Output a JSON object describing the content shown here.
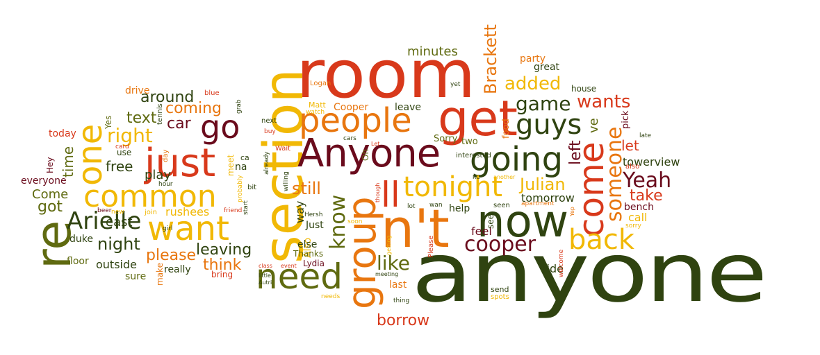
{
  "palette": {
    "red": "#d8391b",
    "orange": "#e8760f",
    "yellow": "#f1b805",
    "dark_green": "#2f4310",
    "olive": "#5f6a10",
    "maroon": "#6a0b1c"
  },
  "words": [
    {
      "text": "anyone",
      "color": "dark_green"
    },
    {
      "text": "room",
      "color": "red"
    },
    {
      "text": "section",
      "color": "yellow"
    },
    {
      "text": "Anyone",
      "color": "maroon"
    },
    {
      "text": "get",
      "color": "red"
    },
    {
      "text": "now",
      "color": "dark_green"
    },
    {
      "text": "n't",
      "color": "orange"
    },
    {
      "text": "group",
      "color": "orange"
    },
    {
      "text": "just",
      "color": "red"
    },
    {
      "text": "common",
      "color": "yellow"
    },
    {
      "text": "re",
      "color": "olive"
    },
    {
      "text": "one",
      "color": "yellow"
    },
    {
      "text": "people",
      "color": "orange"
    },
    {
      "text": "going",
      "color": "dark_green"
    },
    {
      "text": "want",
      "color": "yellow"
    },
    {
      "text": "need",
      "color": "olive"
    },
    {
      "text": "come",
      "color": "red"
    },
    {
      "text": "tonight",
      "color": "yellow"
    },
    {
      "text": "go",
      "color": "maroon"
    },
    {
      "text": "back",
      "color": "yellow"
    },
    {
      "text": "guys",
      "color": "dark_green"
    },
    {
      "text": "Arielle",
      "color": "dark_green"
    },
    {
      "text": "know",
      "color": "olive"
    },
    {
      "text": "someone",
      "color": "orange"
    },
    {
      "text": "ll",
      "color": "red"
    },
    {
      "text": "cooper",
      "color": "maroon"
    },
    {
      "text": "Yeah",
      "color": "maroon"
    },
    {
      "text": "game",
      "color": "dark_green"
    },
    {
      "text": "right",
      "color": "yellow"
    },
    {
      "text": "like",
      "color": "olive"
    },
    {
      "text": "night",
      "color": "dark_green"
    },
    {
      "text": "coming",
      "color": "orange"
    },
    {
      "text": "added",
      "color": "yellow"
    },
    {
      "text": "wants",
      "color": "red"
    },
    {
      "text": "Julian",
      "color": "yellow"
    },
    {
      "text": "Brackett",
      "color": "orange"
    },
    {
      "text": "around",
      "color": "dark_green"
    },
    {
      "text": "text",
      "color": "olive"
    },
    {
      "text": "still",
      "color": "orange"
    },
    {
      "text": "borrow",
      "color": "red"
    },
    {
      "text": "left",
      "color": "maroon"
    },
    {
      "text": "got",
      "color": "olive"
    },
    {
      "text": "please",
      "color": "orange"
    },
    {
      "text": "minutes",
      "color": "olive"
    },
    {
      "text": "car",
      "color": "maroon"
    },
    {
      "text": "take",
      "color": "red"
    },
    {
      "text": "leaving",
      "color": "dark_green"
    },
    {
      "text": "think",
      "color": "orange"
    },
    {
      "text": "free",
      "color": "dark_green"
    },
    {
      "text": "time",
      "color": "olive"
    },
    {
      "text": "Come",
      "color": "olive"
    },
    {
      "text": "east",
      "color": "dark_green"
    },
    {
      "text": "let",
      "color": "red"
    },
    {
      "text": "ve",
      "color": "olive"
    },
    {
      "text": "play",
      "color": "dark_green"
    },
    {
      "text": "way",
      "color": "dark_green"
    },
    {
      "text": "outside",
      "color": "dark_green"
    },
    {
      "text": "towerview",
      "color": "dark_green"
    },
    {
      "text": "tomorrow",
      "color": "dark_green"
    },
    {
      "text": "feel",
      "color": "maroon"
    },
    {
      "text": "ride",
      "color": "dark_green"
    },
    {
      "text": "call",
      "color": "yellow"
    },
    {
      "text": "rushees",
      "color": "yellow"
    },
    {
      "text": "floor",
      "color": "olive"
    },
    {
      "text": "sure",
      "color": "olive"
    },
    {
      "text": "really",
      "color": "dark_green"
    },
    {
      "text": "drive",
      "color": "orange"
    },
    {
      "text": "Also",
      "color": "yellow"
    },
    {
      "text": "duke",
      "color": "dark_green"
    },
    {
      "text": "bench",
      "color": "maroon"
    },
    {
      "text": "Just",
      "color": "dark_green"
    },
    {
      "text": "else",
      "color": "dark_green"
    },
    {
      "text": "help",
      "color": "dark_green"
    },
    {
      "text": "last",
      "color": "orange"
    },
    {
      "text": "party",
      "color": "orange"
    },
    {
      "text": "great",
      "color": "dark_green"
    },
    {
      "text": "Cooper",
      "color": "orange"
    },
    {
      "text": "leave",
      "color": "dark_green"
    },
    {
      "text": "food",
      "color": "orange"
    },
    {
      "text": "Sorry",
      "color": "olive"
    },
    {
      "text": "two",
      "color": "olive"
    },
    {
      "text": "pick",
      "color": "maroon"
    },
    {
      "text": "house",
      "color": "dark_green"
    },
    {
      "text": "everyone",
      "color": "maroon"
    },
    {
      "text": "today",
      "color": "red"
    },
    {
      "text": "use",
      "color": "dark_green"
    },
    {
      "text": "Hey",
      "color": "maroon"
    },
    {
      "text": "Yes",
      "color": "olive"
    },
    {
      "text": "na",
      "color": "dark_green"
    },
    {
      "text": "Thanks",
      "color": "olive"
    },
    {
      "text": "Lydia",
      "color": "maroon"
    },
    {
      "text": "bring",
      "color": "red"
    },
    {
      "text": "make",
      "color": "orange"
    },
    {
      "text": "see",
      "color": "dark_green"
    },
    {
      "text": "Matt",
      "color": "yellow"
    },
    {
      "text": "meet",
      "color": "yellow"
    },
    {
      "text": "send",
      "color": "dark_green"
    },
    {
      "text": "spots",
      "color": "yellow"
    },
    {
      "text": "seen",
      "color": "dark_green"
    },
    {
      "text": "interested",
      "color": "dark_green"
    },
    {
      "text": "also",
      "color": "red"
    },
    {
      "text": "late",
      "color": "dark_green"
    },
    {
      "text": "Please",
      "color": "red"
    },
    {
      "text": "welcome",
      "color": "red"
    },
    {
      "text": "apartment",
      "color": "orange"
    },
    {
      "text": "sorry",
      "color": "yellow"
    },
    {
      "text": "blue",
      "color": "red"
    },
    {
      "text": "tennis",
      "color": "dark_green"
    },
    {
      "text": "card",
      "color": "red"
    },
    {
      "text": "day",
      "color": "orange"
    },
    {
      "text": "join",
      "color": "yellow"
    },
    {
      "text": "beer",
      "color": "maroon"
    },
    {
      "text": "new",
      "color": "yellow"
    },
    {
      "text": "hour",
      "color": "dark_green"
    },
    {
      "text": "girl",
      "color": "dark_green"
    },
    {
      "text": "friend",
      "color": "red"
    },
    {
      "text": "ca",
      "color": "dark_green"
    },
    {
      "text": "bit",
      "color": "dark_green"
    },
    {
      "text": "start",
      "color": "dark_green"
    },
    {
      "text": "willing",
      "color": "dark_green"
    },
    {
      "text": "Hersh",
      "color": "dark_green"
    },
    {
      "text": "soon",
      "color": "yellow"
    },
    {
      "text": "little",
      "color": "dark_green"
    },
    {
      "text": "Autri",
      "color": "dark_green"
    },
    {
      "text": "class",
      "color": "red"
    },
    {
      "text": "event",
      "color": "red"
    },
    {
      "text": "meeting",
      "color": "dark_green"
    },
    {
      "text": "needs",
      "color": "yellow"
    },
    {
      "text": "thing",
      "color": "dark_green"
    },
    {
      "text": "lot",
      "color": "dark_green"
    },
    {
      "text": "wan",
      "color": "dark_green"
    },
    {
      "text": "getting",
      "color": "yellow"
    },
    {
      "text": "RC",
      "color": "dark_green"
    },
    {
      "text": "another",
      "color": "yellow"
    },
    {
      "text": "Yep",
      "color": "orange"
    },
    {
      "text": "grab",
      "color": "dark_green"
    },
    {
      "text": "next",
      "color": "dark_green"
    },
    {
      "text": "buy",
      "color": "red"
    },
    {
      "text": "cars",
      "color": "dark_green"
    },
    {
      "text": "Let",
      "color": "red"
    },
    {
      "text": "already",
      "color": "dark_green"
    },
    {
      "text": "Wait",
      "color": "red"
    },
    {
      "text": "Oh",
      "color": "olive"
    },
    {
      "text": "watch",
      "color": "yellow"
    },
    {
      "text": "Logan",
      "color": "orange"
    },
    {
      "text": "yet",
      "color": "dark_green"
    },
    {
      "text": "probably",
      "color": "yellow"
    },
    {
      "text": "though",
      "color": "red"
    }
  ]
}
